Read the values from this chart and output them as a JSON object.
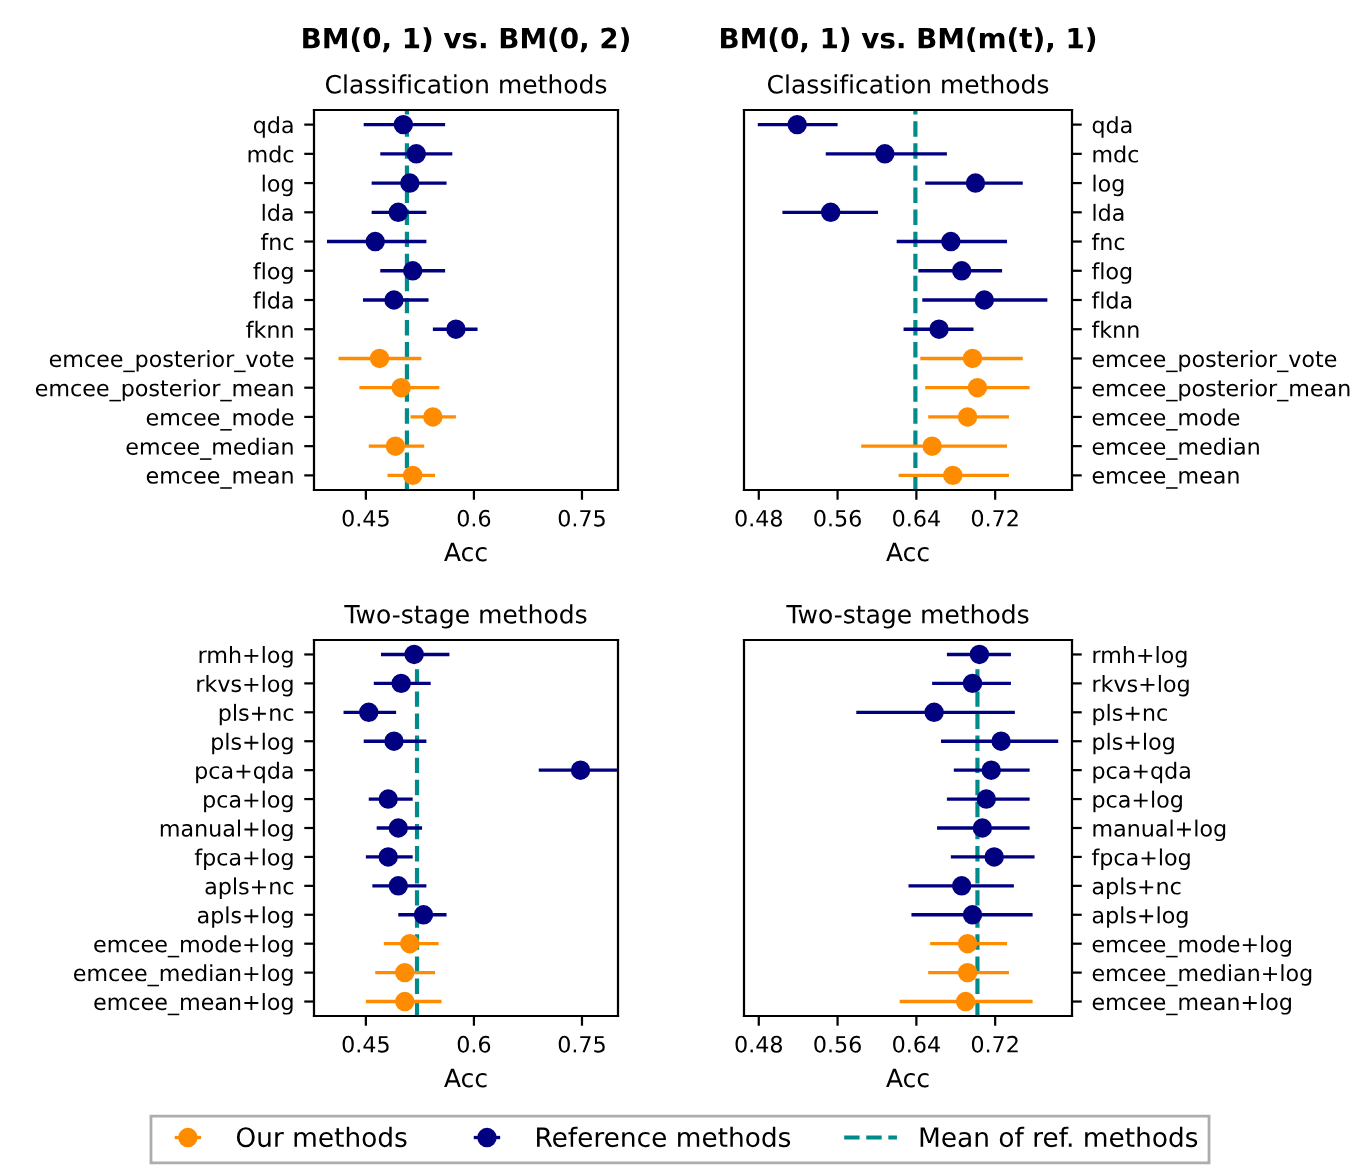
{
  "chart_data": [
    {
      "type": "scatter",
      "subtitle": "BM(0, 1) vs. BM(0, 2)",
      "title": "Classification methods",
      "xlabel": "Acc",
      "orientation": "horizontal",
      "legend": "bottom",
      "marker": "circle",
      "categories": [
        "qda",
        "mdc",
        "log",
        "lda",
        "fnc",
        "flog",
        "flda",
        "fknn",
        "emcee_posterior_vote",
        "emcee_posterior_mean",
        "emcee_mode",
        "emcee_median",
        "emcee_mean"
      ],
      "xlim": [
        0.378,
        0.8
      ],
      "xticks": [
        0.45,
        0.6,
        0.75
      ],
      "series": [
        {
          "name": "Our methods",
          "color": "#ff8c00",
          "values": [
            null,
            null,
            null,
            null,
            null,
            null,
            null,
            null,
            0.469,
            0.499,
            0.543,
            0.491,
            0.515
          ],
          "errors": [
            null,
            null,
            null,
            null,
            null,
            null,
            null,
            null,
            [
              0.412,
              0.527
            ],
            [
              0.441,
              0.552
            ],
            [
              0.512,
              0.575
            ],
            [
              0.454,
              0.531
            ],
            [
              0.48,
              0.546
            ]
          ]
        },
        {
          "name": "Reference methods",
          "color": "#000080",
          "values": [
            0.502,
            0.52,
            0.511,
            0.495,
            0.463,
            0.515,
            0.489,
            0.575,
            null,
            null,
            null,
            null,
            null
          ],
          "errors": [
            [
              0.447,
              0.56
            ],
            [
              0.47,
              0.57
            ],
            [
              0.458,
              0.562
            ],
            [
              0.458,
              0.534
            ],
            [
              0.396,
              0.534
            ],
            [
              0.47,
              0.56
            ],
            [
              0.446,
              0.537
            ],
            [
              0.543,
              0.605
            ],
            null,
            null,
            null,
            null,
            null
          ]
        }
      ],
      "ref_lines": [
        {
          "axis": "x",
          "value": 0.507,
          "label": "Mean of ref. methods",
          "color": "#008b8b",
          "line_style": "dashed"
        }
      ]
    },
    {
      "type": "scatter",
      "subtitle": "BM(0, 1) vs. BM(m(t), 1)",
      "title": "Classification methods",
      "xlabel": "Acc",
      "orientation": "horizontal",
      "marker": "circle",
      "categories": [
        "qda",
        "mdc",
        "log",
        "lda",
        "fnc",
        "flog",
        "flda",
        "fknn",
        "emcee_posterior_vote",
        "emcee_posterior_mean",
        "emcee_mode",
        "emcee_median",
        "emcee_mean"
      ],
      "xlim": [
        0.465,
        0.798
      ],
      "xticks": [
        0.48,
        0.56,
        0.64,
        0.72
      ],
      "series": [
        {
          "name": "Our methods",
          "color": "#ff8c00",
          "values": [
            null,
            null,
            null,
            null,
            null,
            null,
            null,
            null,
            0.697,
            0.702,
            0.692,
            0.656,
            0.677
          ],
          "errors": [
            null,
            null,
            null,
            null,
            null,
            null,
            null,
            null,
            [
              0.644,
              0.748
            ],
            [
              0.649,
              0.755
            ],
            [
              0.652,
              0.734
            ],
            [
              0.584,
              0.732
            ],
            [
              0.622,
              0.734
            ]
          ]
        },
        {
          "name": "Reference methods",
          "color": "#000080",
          "values": [
            0.519,
            0.608,
            0.7,
            0.553,
            0.675,
            0.686,
            0.709,
            0.663,
            null,
            null,
            null,
            null,
            null
          ],
          "errors": [
            [
              0.479,
              0.56
            ],
            [
              0.548,
              0.671
            ],
            [
              0.649,
              0.748
            ],
            [
              0.504,
              0.601
            ],
            [
              0.62,
              0.732
            ],
            [
              0.642,
              0.727
            ],
            [
              0.646,
              0.773
            ],
            [
              0.627,
              0.698
            ],
            null,
            null,
            null,
            null,
            null
          ]
        }
      ],
      "ref_lines": [
        {
          "axis": "x",
          "value": 0.639,
          "color": "#008b8b",
          "line_style": "dashed"
        }
      ]
    },
    {
      "type": "scatter",
      "title": "Two-stage methods",
      "xlabel": "Acc",
      "orientation": "horizontal",
      "marker": "circle",
      "categories": [
        "rmh+log",
        "rkvs+log",
        "pls+nc",
        "pls+log",
        "pca+qda",
        "pca+log",
        "manual+log",
        "fpca+log",
        "apls+nc",
        "apls+log",
        "emcee_mode+log",
        "emcee_median+log",
        "emcee_mean+log"
      ],
      "xlim": [
        0.378,
        0.8
      ],
      "xticks": [
        0.45,
        0.6,
        0.75
      ],
      "series": [
        {
          "name": "Our methods",
          "color": "#ff8c00",
          "values": [
            null,
            null,
            null,
            null,
            null,
            null,
            null,
            null,
            null,
            null,
            0.511,
            0.504,
            0.504
          ],
          "errors": [
            null,
            null,
            null,
            null,
            null,
            null,
            null,
            null,
            null,
            null,
            [
              0.475,
              0.551
            ],
            [
              0.463,
              0.546
            ],
            [
              0.45,
              0.555
            ]
          ]
        },
        {
          "name": "Reference methods",
          "color": "#000080",
          "values": [
            0.517,
            0.499,
            0.454,
            0.489,
            0.748,
            0.481,
            0.495,
            0.481,
            0.495,
            0.53,
            null,
            null,
            null
          ],
          "errors": [
            [
              0.471,
              0.566
            ],
            [
              0.461,
              0.54
            ],
            [
              0.419,
              0.492
            ],
            [
              0.447,
              0.534
            ],
            [
              0.69,
              0.8
            ],
            [
              0.454,
              0.515
            ],
            [
              0.465,
              0.528
            ],
            [
              0.45,
              0.515
            ],
            [
              0.459,
              0.534
            ],
            [
              0.495,
              0.562
            ],
            null,
            null,
            null
          ]
        }
      ],
      "ref_lines": [
        {
          "axis": "x",
          "value": 0.521,
          "color": "#008b8b",
          "line_style": "dashed"
        }
      ]
    },
    {
      "type": "scatter",
      "title": "Two-stage methods",
      "xlabel": "Acc",
      "orientation": "horizontal",
      "marker": "circle",
      "categories": [
        "rmh+log",
        "rkvs+log",
        "pls+nc",
        "pls+log",
        "pca+qda",
        "pca+log",
        "manual+log",
        "fpca+log",
        "apls+nc",
        "apls+log",
        "emcee_mode+log",
        "emcee_median+log",
        "emcee_mean+log"
      ],
      "xlim": [
        0.465,
        0.798
      ],
      "xticks": [
        0.48,
        0.56,
        0.64,
        0.72
      ],
      "series": [
        {
          "name": "Our methods",
          "color": "#ff8c00",
          "values": [
            null,
            null,
            null,
            null,
            null,
            null,
            null,
            null,
            null,
            null,
            0.692,
            0.692,
            0.69
          ],
          "errors": [
            null,
            null,
            null,
            null,
            null,
            null,
            null,
            null,
            null,
            null,
            [
              0.654,
              0.732
            ],
            [
              0.652,
              0.734
            ],
            [
              0.623,
              0.758
            ]
          ]
        },
        {
          "name": "Reference methods",
          "color": "#000080",
          "values": [
            0.704,
            0.697,
            0.658,
            0.726,
            0.716,
            0.711,
            0.707,
            0.719,
            0.686,
            0.697,
            null,
            null,
            null
          ],
          "errors": [
            [
              0.671,
              0.736
            ],
            [
              0.656,
              0.736
            ],
            [
              0.579,
              0.74
            ],
            [
              0.665,
              0.784
            ],
            [
              0.678,
              0.755
            ],
            [
              0.671,
              0.755
            ],
            [
              0.661,
              0.755
            ],
            [
              0.675,
              0.76
            ],
            [
              0.632,
              0.739
            ],
            [
              0.635,
              0.758
            ],
            null,
            null,
            null
          ]
        }
      ],
      "ref_lines": [
        {
          "axis": "x",
          "value": 0.702,
          "color": "#008b8b",
          "line_style": "dashed"
        }
      ]
    }
  ]
}
